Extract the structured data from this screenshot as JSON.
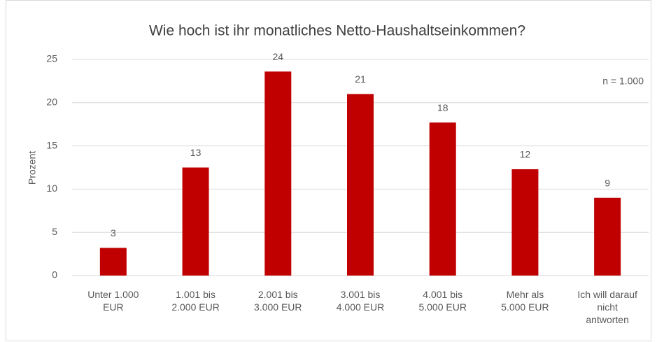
{
  "chart_data": {
    "type": "bar",
    "title": "Wie hoch ist ihr monatliches Netto-Haushaltseinkommen?",
    "y_label": "Prozent",
    "annotation": "n = 1.000",
    "categories": [
      "Unter 1.000\nEUR",
      "1.001 bis\n2.000 EUR",
      "2.001 bis\n3.000 EUR",
      "3.001 bis\n4.000 EUR",
      "4.001 bis\n5.000 EUR",
      "Mehr als\n5.000 EUR",
      "Ich will darauf\nnicht\nantworten"
    ],
    "values": [
      3.2,
      12.5,
      23.6,
      21.0,
      17.7,
      12.3,
      9.0
    ],
    "value_labels": [
      "3",
      "13",
      "24",
      "21",
      "18",
      "12",
      "9"
    ],
    "color": "#c00000",
    "ylim": [
      0,
      25
    ],
    "yticks": [
      0,
      5,
      10,
      15,
      20,
      25
    ],
    "grid": true
  }
}
